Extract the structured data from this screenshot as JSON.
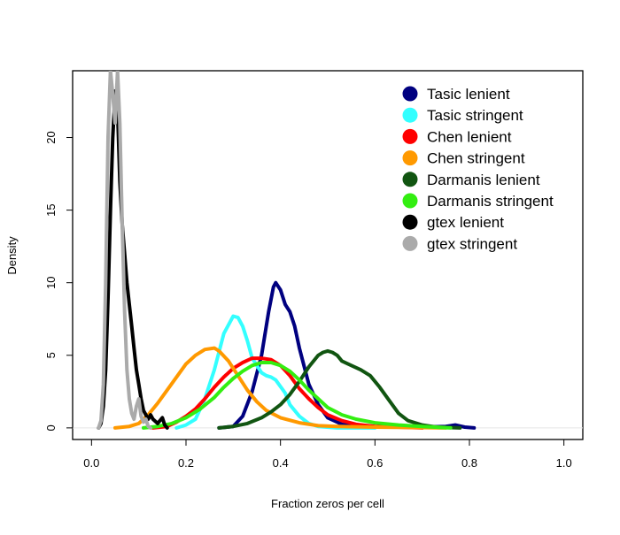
{
  "chart_data": {
    "type": "line",
    "title": "",
    "xlabel": "Fraction zeros per cell",
    "ylabel": "Density",
    "xlim": [
      -0.04,
      1.04
    ],
    "ylim": [
      -0.8,
      24.6
    ],
    "xticks": [
      "0.0",
      "0.2",
      "0.4",
      "0.6",
      "0.8",
      "1.0"
    ],
    "xtick_values": [
      0.0,
      0.2,
      0.4,
      0.6,
      0.8,
      1.0
    ],
    "yticks": [
      "0",
      "5",
      "10",
      "15",
      "20"
    ],
    "ytick_values": [
      0,
      5,
      10,
      15,
      20
    ],
    "legend_position": "top-right",
    "series": [
      {
        "name": "Tasic lenient",
        "color": "#000080",
        "points": [
          [
            0.27,
            0
          ],
          [
            0.3,
            0.1
          ],
          [
            0.32,
            0.8
          ],
          [
            0.34,
            2.5
          ],
          [
            0.36,
            5
          ],
          [
            0.375,
            8
          ],
          [
            0.385,
            9.7
          ],
          [
            0.39,
            10
          ],
          [
            0.4,
            9.5
          ],
          [
            0.41,
            8.5
          ],
          [
            0.42,
            8
          ],
          [
            0.43,
            7
          ],
          [
            0.44,
            5.5
          ],
          [
            0.46,
            3
          ],
          [
            0.48,
            1.6
          ],
          [
            0.5,
            0.7
          ],
          [
            0.53,
            0.25
          ],
          [
            0.56,
            0.1
          ],
          [
            0.62,
            0.05
          ],
          [
            0.7,
            0.05
          ],
          [
            0.75,
            0.1
          ],
          [
            0.77,
            0.2
          ],
          [
            0.79,
            0.05
          ],
          [
            0.81,
            0
          ]
        ]
      },
      {
        "name": "Tasic stringent",
        "color": "#33FFFF",
        "points": [
          [
            0.18,
            0
          ],
          [
            0.2,
            0.2
          ],
          [
            0.22,
            0.6
          ],
          [
            0.24,
            2
          ],
          [
            0.26,
            4
          ],
          [
            0.28,
            6.5
          ],
          [
            0.3,
            7.7
          ],
          [
            0.31,
            7.6
          ],
          [
            0.32,
            7
          ],
          [
            0.33,
            6
          ],
          [
            0.34,
            4.8
          ],
          [
            0.36,
            3.8
          ],
          [
            0.37,
            3.6
          ],
          [
            0.38,
            3.5
          ],
          [
            0.39,
            3.3
          ],
          [
            0.41,
            2.4
          ],
          [
            0.42,
            1.6
          ],
          [
            0.44,
            0.8
          ],
          [
            0.46,
            0.3
          ],
          [
            0.48,
            0.1
          ],
          [
            0.52,
            0
          ],
          [
            0.6,
            0
          ]
        ]
      },
      {
        "name": "Chen lenient",
        "color": "#FF0000",
        "points": [
          [
            0.13,
            0
          ],
          [
            0.16,
            0.1
          ],
          [
            0.18,
            0.4
          ],
          [
            0.2,
            0.8
          ],
          [
            0.22,
            1.3
          ],
          [
            0.24,
            2
          ],
          [
            0.26,
            2.8
          ],
          [
            0.28,
            3.5
          ],
          [
            0.3,
            4.1
          ],
          [
            0.32,
            4.5
          ],
          [
            0.34,
            4.8
          ],
          [
            0.36,
            4.8
          ],
          [
            0.38,
            4.7
          ],
          [
            0.4,
            4.3
          ],
          [
            0.42,
            3.6
          ],
          [
            0.44,
            2.7
          ],
          [
            0.46,
            2
          ],
          [
            0.48,
            1.4
          ],
          [
            0.5,
            0.9
          ],
          [
            0.53,
            0.5
          ],
          [
            0.56,
            0.25
          ],
          [
            0.6,
            0.1
          ],
          [
            0.65,
            0.05
          ],
          [
            0.7,
            0
          ]
        ]
      },
      {
        "name": "Chen stringent",
        "color": "#FF9900",
        "points": [
          [
            0.05,
            0
          ],
          [
            0.08,
            0.1
          ],
          [
            0.1,
            0.3
          ],
          [
            0.12,
            0.9
          ],
          [
            0.14,
            1.7
          ],
          [
            0.16,
            2.6
          ],
          [
            0.18,
            3.5
          ],
          [
            0.2,
            4.4
          ],
          [
            0.22,
            5
          ],
          [
            0.24,
            5.4
          ],
          [
            0.26,
            5.5
          ],
          [
            0.27,
            5.3
          ],
          [
            0.29,
            4.6
          ],
          [
            0.31,
            3.6
          ],
          [
            0.33,
            2.6
          ],
          [
            0.35,
            1.8
          ],
          [
            0.37,
            1.2
          ],
          [
            0.4,
            0.7
          ],
          [
            0.44,
            0.35
          ],
          [
            0.48,
            0.15
          ],
          [
            0.52,
            0.1
          ],
          [
            0.6,
            0.05
          ],
          [
            0.7,
            0.02
          ],
          [
            0.75,
            0
          ]
        ]
      },
      {
        "name": "Darmanis lenient",
        "color": "#115511",
        "points": [
          [
            0.27,
            0
          ],
          [
            0.3,
            0.1
          ],
          [
            0.33,
            0.3
          ],
          [
            0.36,
            0.7
          ],
          [
            0.38,
            1.1
          ],
          [
            0.4,
            1.6
          ],
          [
            0.42,
            2.3
          ],
          [
            0.44,
            3.2
          ],
          [
            0.46,
            4.2
          ],
          [
            0.48,
            5
          ],
          [
            0.49,
            5.2
          ],
          [
            0.5,
            5.3
          ],
          [
            0.51,
            5.2
          ],
          [
            0.52,
            5
          ],
          [
            0.53,
            4.6
          ],
          [
            0.55,
            4.3
          ],
          [
            0.57,
            4
          ],
          [
            0.59,
            3.6
          ],
          [
            0.61,
            2.8
          ],
          [
            0.63,
            1.9
          ],
          [
            0.65,
            1
          ],
          [
            0.67,
            0.5
          ],
          [
            0.7,
            0.2
          ],
          [
            0.73,
            0.05
          ],
          [
            0.78,
            0
          ]
        ]
      },
      {
        "name": "Darmanis stringent",
        "color": "#33EE11",
        "points": [
          [
            0.11,
            0
          ],
          [
            0.14,
            0.1
          ],
          [
            0.17,
            0.3
          ],
          [
            0.2,
            0.7
          ],
          [
            0.23,
            1.3
          ],
          [
            0.26,
            2.1
          ],
          [
            0.28,
            2.8
          ],
          [
            0.3,
            3.4
          ],
          [
            0.32,
            3.9
          ],
          [
            0.34,
            4.3
          ],
          [
            0.36,
            4.5
          ],
          [
            0.38,
            4.5
          ],
          [
            0.4,
            4.3
          ],
          [
            0.42,
            3.9
          ],
          [
            0.44,
            3.3
          ],
          [
            0.46,
            2.6
          ],
          [
            0.48,
            2
          ],
          [
            0.5,
            1.4
          ],
          [
            0.53,
            0.9
          ],
          [
            0.56,
            0.6
          ],
          [
            0.6,
            0.35
          ],
          [
            0.65,
            0.2
          ],
          [
            0.7,
            0.1
          ],
          [
            0.76,
            0
          ]
        ]
      },
      {
        "name": "gtex lenient",
        "color": "#000000",
        "points": [
          [
            0.015,
            0
          ],
          [
            0.02,
            0.3
          ],
          [
            0.025,
            1.5
          ],
          [
            0.03,
            4
          ],
          [
            0.035,
            9
          ],
          [
            0.04,
            15
          ],
          [
            0.045,
            20
          ],
          [
            0.05,
            23.2
          ],
          [
            0.055,
            22
          ],
          [
            0.06,
            17
          ],
          [
            0.065,
            14
          ],
          [
            0.07,
            12
          ],
          [
            0.075,
            10
          ],
          [
            0.08,
            8.5
          ],
          [
            0.085,
            7
          ],
          [
            0.09,
            5.5
          ],
          [
            0.095,
            4
          ],
          [
            0.1,
            3
          ],
          [
            0.105,
            2
          ],
          [
            0.11,
            1.2
          ],
          [
            0.115,
            0.9
          ],
          [
            0.12,
            0.6
          ],
          [
            0.125,
            0.9
          ],
          [
            0.13,
            0.6
          ],
          [
            0.14,
            0.3
          ],
          [
            0.15,
            0.7
          ],
          [
            0.155,
            0.2
          ],
          [
            0.16,
            0
          ]
        ]
      },
      {
        "name": "gtex stringent",
        "color": "#AAAAAA",
        "points": [
          [
            0.015,
            0
          ],
          [
            0.02,
            0.5
          ],
          [
            0.025,
            3
          ],
          [
            0.03,
            10
          ],
          [
            0.035,
            20
          ],
          [
            0.04,
            24.6
          ],
          [
            0.045,
            23
          ],
          [
            0.05,
            21
          ],
          [
            0.055,
            24.6
          ],
          [
            0.06,
            21
          ],
          [
            0.065,
            14
          ],
          [
            0.07,
            8
          ],
          [
            0.075,
            4
          ],
          [
            0.08,
            2
          ],
          [
            0.085,
            1
          ],
          [
            0.09,
            0.6
          ],
          [
            0.095,
            1.5
          ],
          [
            0.1,
            2
          ],
          [
            0.105,
            0.8
          ],
          [
            0.11,
            0.4
          ],
          [
            0.115,
            0.6
          ],
          [
            0.12,
            0.1
          ],
          [
            0.125,
            0
          ]
        ]
      }
    ]
  }
}
